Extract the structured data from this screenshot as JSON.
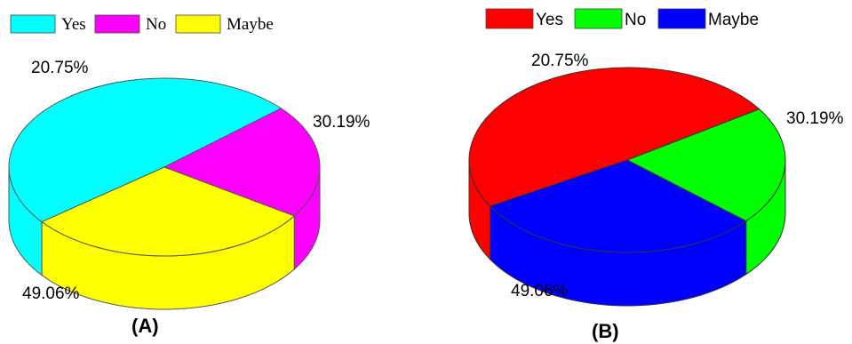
{
  "chart_data": [
    {
      "type": "pie",
      "panel_label": "(A)",
      "categories": [
        "Yes",
        "No",
        "Maybe"
      ],
      "values": [
        49.06,
        20.75,
        30.19
      ],
      "data_labels": [
        "49.06%",
        "20.75%",
        "30.19%"
      ],
      "colors": [
        "#00ffff",
        "#ff00ff",
        "#ffff00"
      ],
      "legend_position": "top-left",
      "style": "3d"
    },
    {
      "type": "pie",
      "panel_label": "(B)",
      "categories": [
        "Yes",
        "No",
        "Maybe"
      ],
      "values": [
        49.06,
        20.75,
        30.19
      ],
      "data_labels": [
        "49.06%",
        "20.75%",
        "30.19%"
      ],
      "colors": [
        "#ff0000",
        "#00ff00",
        "#0000ff"
      ],
      "legend_position": "top-left",
      "style": "3d"
    }
  ]
}
